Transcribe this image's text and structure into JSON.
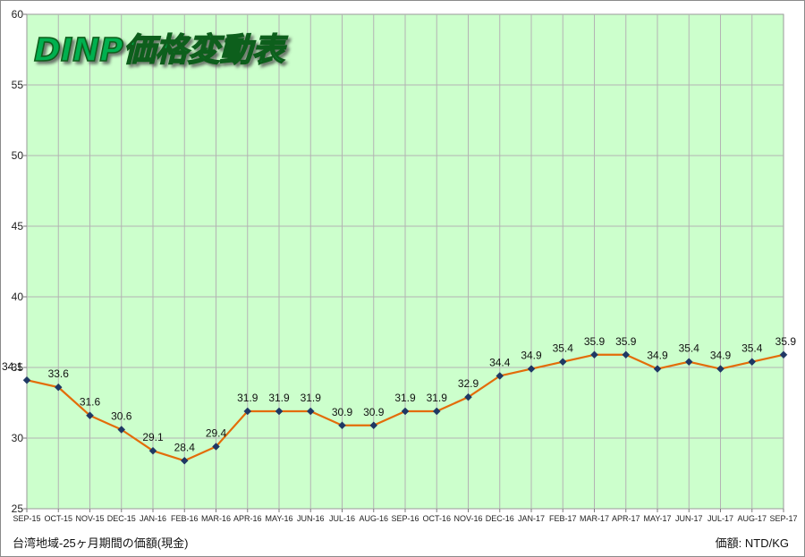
{
  "chart_data": {
    "type": "line",
    "title": "DINP価格変動表",
    "categories": [
      "SEP-15",
      "OCT-15",
      "NOV-15",
      "DEC-15",
      "JAN-16",
      "FEB-16",
      "MAR-16",
      "APR-16",
      "MAY-16",
      "JUN-16",
      "JUL-16",
      "AUG-16",
      "SEP-16",
      "OCT-16",
      "NOV-16",
      "DEC-16",
      "JAN-17",
      "FEB-17",
      "MAR-17",
      "APR-17",
      "MAY-17",
      "JUN-17",
      "JUL-17",
      "AUG-17",
      "SEP-17"
    ],
    "values": [
      34.1,
      33.6,
      31.6,
      30.6,
      29.1,
      28.4,
      29.4,
      31.9,
      31.9,
      31.9,
      30.9,
      30.9,
      31.9,
      31.9,
      32.9,
      34.4,
      34.9,
      35.4,
      35.9,
      35.9,
      34.9,
      35.4,
      34.9,
      35.4,
      35.9
    ],
    "data_labels": [
      "34.1",
      "33.6",
      "31.6",
      "30.6",
      "29.1",
      "28.4",
      "29.4",
      "31.9",
      "31.9",
      "31.9",
      "30.9",
      "30.9",
      "31.9",
      "31.9",
      "32.9",
      "34.4",
      "34.9",
      "35.4",
      "35.9",
      "35.9",
      "34.9",
      "35.4",
      "34.9",
      "35.4",
      "35.9"
    ],
    "ylim": [
      25,
      60
    ],
    "yticks": [
      25,
      30,
      35,
      40,
      45,
      50,
      55,
      60
    ],
    "grid": true,
    "colors": {
      "plot_background": "#ccffcc",
      "line": "#e36c09",
      "marker": "#1f3864",
      "grid": "#b3b3b3",
      "title_fill": "#00b050",
      "title_outline": "#0f5f1a"
    }
  },
  "footer": {
    "left_note": "台湾地域-25ヶ月期間の価額(現金)",
    "right_note": "価額: NTD/KG"
  }
}
